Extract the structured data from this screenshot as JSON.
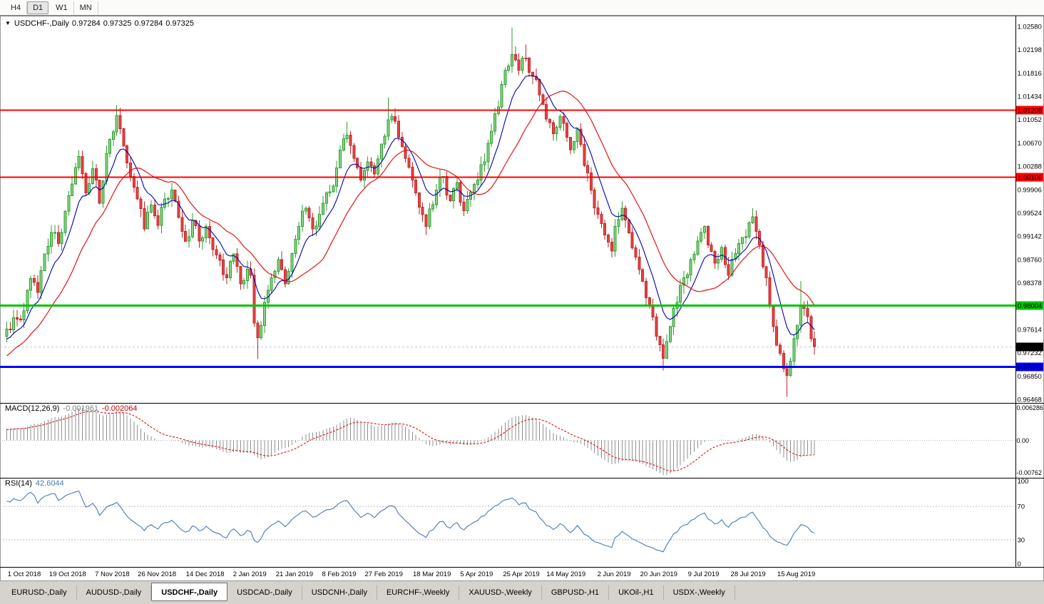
{
  "toolbar": {
    "timeframes": [
      {
        "label": "H4",
        "active": false
      },
      {
        "label": "D1",
        "active": true
      },
      {
        "label": "W1",
        "active": false
      },
      {
        "label": "MN",
        "active": false
      }
    ]
  },
  "chart": {
    "symbol": "USDCHF-,Daily",
    "ohlc": {
      "open": "0.97284",
      "high": "0.97325",
      "low": "0.97284",
      "close": "0.97325"
    }
  },
  "indicators": {
    "macd": {
      "label": "MACD(12,26,9)",
      "value_main": "-0.001961",
      "value_signal": "-0.002064",
      "axis_top": "0.006286",
      "axis_zero": "0.00",
      "axis_bottom": "-0.00762",
      "fast": 12,
      "slow": 26,
      "signal": 9
    },
    "rsi": {
      "label": "RSI(14)",
      "value": "42.6044",
      "period": 14,
      "levels": [
        70,
        30
      ],
      "axis_labels": [
        "100",
        "70",
        "30",
        "0"
      ]
    }
  },
  "chart_data": {
    "type": "candlestick",
    "symbol": "USDCHF",
    "timeframe": "Daily",
    "bars": 236,
    "price_range": {
      "top": 1.0258,
      "bottom": 0.96468
    },
    "price_axis_labels": [
      "1.02580",
      "1.02198",
      "1.01816",
      "1.01434",
      "1.01052",
      "1.00670",
      "1.00288",
      "0.99906",
      "0.99524",
      "0.99142",
      "0.98760",
      "0.98378",
      "0.97614",
      "0.97232",
      "0.96850",
      "0.96468"
    ],
    "date_axis": [
      {
        "label": "1 Oct 2018",
        "bar": 5
      },
      {
        "label": "19 Oct 2018",
        "bar": 18
      },
      {
        "label": "7 Nov 2018",
        "bar": 31
      },
      {
        "label": "26 Nov 2018",
        "bar": 44
      },
      {
        "label": "14 Dec 2018",
        "bar": 58
      },
      {
        "label": "2 Jan 2019",
        "bar": 71
      },
      {
        "label": "21 Jan 2019",
        "bar": 84
      },
      {
        "label": "8 Feb 2019",
        "bar": 97
      },
      {
        "label": "27 Feb 2019",
        "bar": 110
      },
      {
        "label": "18 Mar 2019",
        "bar": 124
      },
      {
        "label": "5 Apr 2019",
        "bar": 137
      },
      {
        "label": "25 Apr 2019",
        "bar": 150
      },
      {
        "label": "14 May 2019",
        "bar": 163
      },
      {
        "label": "2 Jun 2019",
        "bar": 177
      },
      {
        "label": "20 Jun 2019",
        "bar": 190
      },
      {
        "label": "9 Jul 2019",
        "bar": 203
      },
      {
        "label": "28 Jul 2019",
        "bar": 216
      },
      {
        "label": "15 Aug 2019",
        "bar": 230
      }
    ],
    "levels": [
      {
        "price": 1.01205,
        "label": "1.01205",
        "color": "#ff0000",
        "width": 2
      },
      {
        "price": 1.00106,
        "label": "1.00106",
        "color": "#ff0000",
        "width": 2
      },
      {
        "price": 0.98004,
        "label": "0.98004",
        "color": "#00c400",
        "width": 3
      },
      {
        "price": 0.97001,
        "label": "0.97001",
        "color": "#0000ff",
        "width": 3
      }
    ],
    "bid": {
      "price": 0.97325,
      "label": "0.97325",
      "color": "#000000"
    },
    "moving_averages": [
      {
        "type": "ema",
        "period": 9,
        "color": "#0000b4"
      },
      {
        "type": "sma",
        "period": 21,
        "color": "#e60000"
      }
    ],
    "candle_colors": {
      "up_fill": "#86d586",
      "up_stroke": "#2f9e2f",
      "down_fill": "#e64545",
      "down_stroke": "#c22727"
    },
    "close_anchors": [
      [
        0,
        0.9762
      ],
      [
        3,
        0.9778
      ],
      [
        5,
        0.9792
      ],
      [
        7,
        0.9845
      ],
      [
        9,
        0.9822
      ],
      [
        11,
        0.9885
      ],
      [
        13,
        0.992
      ],
      [
        15,
        0.9902
      ],
      [
        17,
        0.9955
      ],
      [
        19,
        1.0
      ],
      [
        21,
        1.0045
      ],
      [
        23,
        0.9985
      ],
      [
        25,
        1.0025
      ],
      [
        27,
        0.9968
      ],
      [
        29,
        1.005
      ],
      [
        31,
        1.0085
      ],
      [
        32,
        1.0112
      ],
      [
        34,
        1.0062
      ],
      [
        36,
        1.0012
      ],
      [
        38,
        0.9975
      ],
      [
        40,
        0.9926
      ],
      [
        42,
        0.9965
      ],
      [
        44,
        0.9932
      ],
      [
        46,
        0.9975
      ],
      [
        48,
        0.999
      ],
      [
        50,
        0.9945
      ],
      [
        52,
        0.9906
      ],
      [
        54,
        0.994
      ],
      [
        56,
        0.9906
      ],
      [
        58,
        0.993
      ],
      [
        60,
        0.9892
      ],
      [
        62,
        0.9875
      ],
      [
        64,
        0.9846
      ],
      [
        66,
        0.9885
      ],
      [
        68,
        0.9836
      ],
      [
        70,
        0.986
      ],
      [
        71,
        0.985
      ],
      [
        72,
        0.9772
      ],
      [
        73,
        0.9748
      ],
      [
        75,
        0.9806
      ],
      [
        77,
        0.9846
      ],
      [
        79,
        0.9876
      ],
      [
        81,
        0.9836
      ],
      [
        83,
        0.9886
      ],
      [
        85,
        0.993
      ],
      [
        87,
        0.996
      ],
      [
        89,
        0.9926
      ],
      [
        91,
        0.995
      ],
      [
        93,
        0.9985
      ],
      [
        95,
        0.9996
      ],
      [
        97,
        1.0055
      ],
      [
        99,
        1.008
      ],
      [
        101,
        1.0042
      ],
      [
        103,
        1.0006
      ],
      [
        105,
        1.0036
      ],
      [
        107,
        1.0016
      ],
      [
        109,
        1.0065
      ],
      [
        111,
        1.0105
      ],
      [
        112,
        1.011
      ],
      [
        114,
        1.0076
      ],
      [
        116,
        1.0042
      ],
      [
        118,
        1.0006
      ],
      [
        120,
        0.9962
      ],
      [
        122,
        0.993
      ],
      [
        124,
        0.9966
      ],
      [
        125,
        0.999
      ],
      [
        127,
        1.0012
      ],
      [
        129,
        0.9972
      ],
      [
        131,
        1.0002
      ],
      [
        133,
        0.9956
      ],
      [
        135,
        0.9986
      ],
      [
        137,
        1.0006
      ],
      [
        139,
        1.0036
      ],
      [
        141,
        1.0086
      ],
      [
        143,
        1.0126
      ],
      [
        145,
        1.0186
      ],
      [
        147,
        1.0212
      ],
      [
        149,
        1.0186
      ],
      [
        151,
        1.0206
      ],
      [
        153,
        1.0176
      ],
      [
        155,
        1.0146
      ],
      [
        157,
        1.0106
      ],
      [
        159,
        1.0082
      ],
      [
        161,
        1.011
      ],
      [
        163,
        1.0076
      ],
      [
        164,
        1.0056
      ],
      [
        166,
        1.009
      ],
      [
        168,
        1.003
      ],
      [
        170,
        0.999
      ],
      [
        172,
        0.995
      ],
      [
        174,
        0.9916
      ],
      [
        176,
        0.989
      ],
      [
        177,
        0.993
      ],
      [
        179,
        0.996
      ],
      [
        181,
        0.992
      ],
      [
        183,
        0.988
      ],
      [
        185,
        0.984
      ],
      [
        187,
        0.98
      ],
      [
        189,
        0.975
      ],
      [
        191,
        0.9714
      ],
      [
        193,
        0.9766
      ],
      [
        195,
        0.9806
      ],
      [
        197,
        0.9846
      ],
      [
        199,
        0.9876
      ],
      [
        201,
        0.9906
      ],
      [
        203,
        0.993
      ],
      [
        204,
        0.99
      ],
      [
        206,
        0.987
      ],
      [
        208,
        0.9896
      ],
      [
        210,
        0.985
      ],
      [
        212,
        0.9886
      ],
      [
        214,
        0.9912
      ],
      [
        216,
        0.9936
      ],
      [
        217,
        0.9946
      ],
      [
        219,
        0.99
      ],
      [
        221,
        0.9846
      ],
      [
        223,
        0.9766
      ],
      [
        225,
        0.9722
      ],
      [
        227,
        0.9686
      ],
      [
        229,
        0.9746
      ],
      [
        231,
        0.98
      ],
      [
        232,
        0.9796
      ],
      [
        235,
        0.9733
      ]
    ],
    "wick_highs": [
      [
        32,
        1.0129
      ],
      [
        99,
        1.0102
      ],
      [
        111,
        1.0141
      ],
      [
        147,
        1.0256
      ],
      [
        151,
        1.0228
      ],
      [
        231,
        0.9841
      ]
    ],
    "wick_lows": [
      [
        73,
        0.9713
      ],
      [
        191,
        0.9694
      ],
      [
        227,
        0.9651
      ]
    ],
    "prehistory": {
      "bars": 30,
      "start_price": 0.9625
    },
    "noise": {
      "seed": 9,
      "close_amp": 0.0011,
      "wick_amp": 0.0014
    }
  },
  "tabs": [
    {
      "label": "EURUSD-,Daily",
      "active": false
    },
    {
      "label": "AUDUSD-,Daily",
      "active": false
    },
    {
      "label": "USDCHF-,Daily",
      "active": true
    },
    {
      "label": "USDCAD-,Daily",
      "active": false
    },
    {
      "label": "USDCNH-,Daily",
      "active": false
    },
    {
      "label": "EURCHF-,Weekly",
      "active": false
    },
    {
      "label": "XAUUSD-,Weekly",
      "active": false
    },
    {
      "label": "GBPUSD-,H1",
      "active": false
    },
    {
      "label": "UKOil-,H1",
      "active": false
    },
    {
      "label": "USDX-,Weekly",
      "active": false
    }
  ]
}
